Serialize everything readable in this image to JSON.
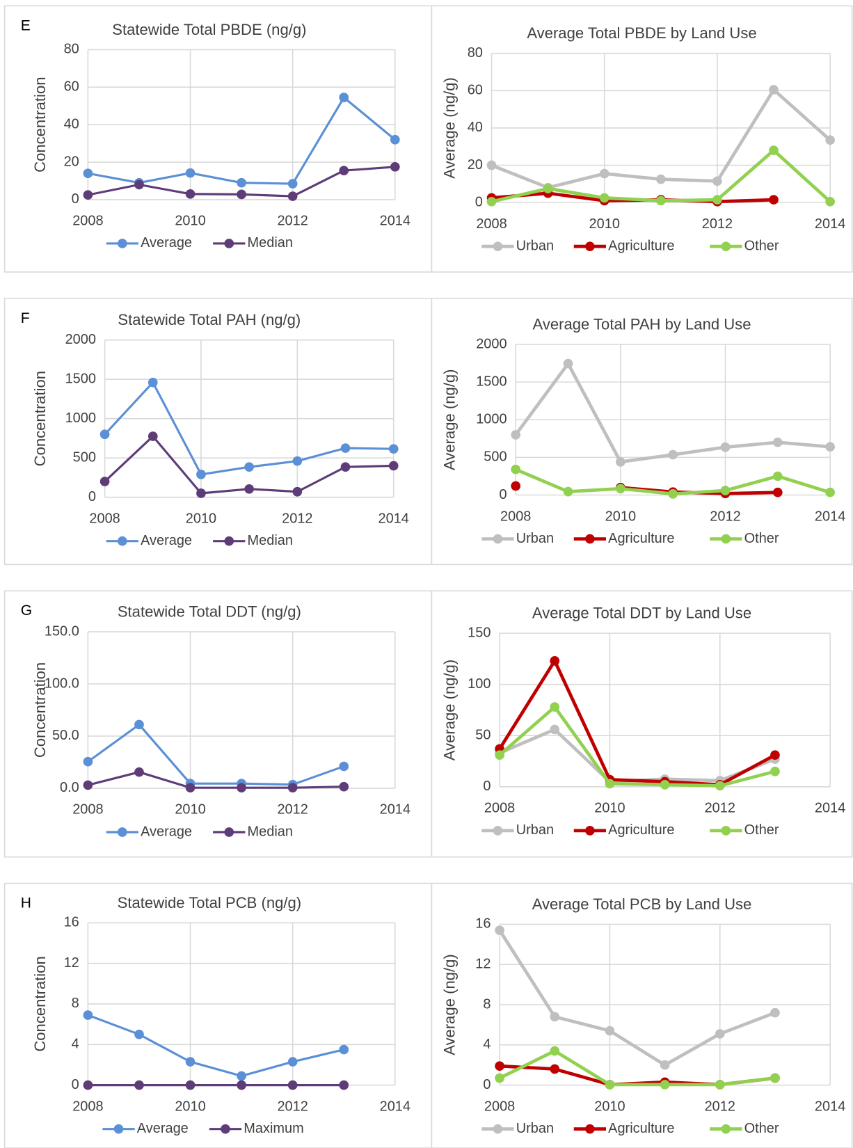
{
  "chart_data": [
    {
      "type": "line",
      "panel": "E",
      "title": "Statewide Total PBDE (ng/g)",
      "ylabel": "Concentration",
      "x": [
        2008,
        2009,
        2010,
        2011,
        2012,
        2013,
        2014
      ],
      "xlim": [
        2008,
        2014
      ],
      "xticks": [
        2008,
        2010,
        2012,
        2014
      ],
      "ylim": [
        0,
        80
      ],
      "yticks": [
        0,
        20,
        40,
        60,
        80
      ],
      "grid": true,
      "series": [
        {
          "name": "Average",
          "color": "#5b8fd6",
          "values": [
            14,
            9,
            14.2,
            9,
            8.5,
            54.5,
            32
          ]
        },
        {
          "name": "Median",
          "color": "#5e3c78",
          "values": [
            2.5,
            8,
            3,
            2.8,
            1.8,
            15.5,
            17.5
          ]
        }
      ]
    },
    {
      "type": "line",
      "title": "Average Total PBDE by Land Use",
      "ylabel": "Average (ng/g)",
      "x": [
        2008,
        2009,
        2010,
        2011,
        2012,
        2013,
        2014
      ],
      "xlim": [
        2008,
        2014
      ],
      "xticks": [
        2008,
        2010,
        2012,
        2014
      ],
      "ylim": [
        0,
        80
      ],
      "yticks": [
        0,
        20,
        40,
        60,
        80
      ],
      "grid": true,
      "series": [
        {
          "name": "Urban",
          "color": "#bfbfbf",
          "values": [
            20,
            8,
            15.5,
            12.5,
            11.5,
            60.5,
            33.5
          ]
        },
        {
          "name": "Agriculture",
          "color": "#c00000",
          "values": [
            2.5,
            5,
            1,
            1.5,
            0.5,
            1.5,
            null
          ]
        },
        {
          "name": "Other",
          "color": "#92d050",
          "values": [
            0.5,
            7.5,
            2.5,
            1,
            1.5,
            28,
            0.5
          ]
        }
      ]
    },
    {
      "type": "line",
      "panel": "F",
      "title": "Statewide Total PAH (ng/g)",
      "ylabel": "Concentration",
      "x": [
        2008,
        2009,
        2010,
        2011,
        2012,
        2013,
        2014
      ],
      "xlim": [
        2008,
        2014
      ],
      "xticks": [
        2008,
        2010,
        2012,
        2014
      ],
      "ylim": [
        0,
        2000
      ],
      "yticks": [
        0,
        500,
        1000,
        1500,
        2000
      ],
      "grid": true,
      "series": [
        {
          "name": "Average",
          "color": "#5b8fd6",
          "values": [
            800,
            1460,
            290,
            385,
            460,
            625,
            615
          ]
        },
        {
          "name": "Median",
          "color": "#5e3c78",
          "values": [
            200,
            775,
            50,
            105,
            70,
            385,
            400
          ]
        }
      ]
    },
    {
      "type": "line",
      "title": "Average Total PAH by Land Use",
      "ylabel": "Average (ng/g)",
      "x": [
        2008,
        2009,
        2010,
        2011,
        2012,
        2013,
        2014
      ],
      "xlim": [
        2008,
        2014
      ],
      "xticks": [
        2008,
        2010,
        2012,
        2014
      ],
      "ylim": [
        0,
        2000
      ],
      "yticks": [
        0,
        500,
        1000,
        1500,
        2000
      ],
      "grid": true,
      "series": [
        {
          "name": "Urban",
          "color": "#bfbfbf",
          "values": [
            800,
            1745,
            440,
            535,
            635,
            700,
            640
          ]
        },
        {
          "name": "Agriculture",
          "color": "#c00000",
          "values": [
            120,
            null,
            100,
            40,
            20,
            35,
            null
          ]
        },
        {
          "name": "Other",
          "color": "#92d050",
          "values": [
            340,
            45,
            85,
            15,
            60,
            250,
            35
          ]
        }
      ]
    },
    {
      "type": "line",
      "panel": "G",
      "title": "Statewide Total DDT (ng/g)",
      "ylabel": "Concentration",
      "x": [
        2008,
        2009,
        2010,
        2011,
        2012,
        2013,
        2014
      ],
      "xlim": [
        2008,
        2014
      ],
      "xticks": [
        2008,
        2010,
        2012,
        2014
      ],
      "ylim": [
        0,
        150
      ],
      "yticks": [
        {
          "value": 0,
          "label": "0.0"
        },
        {
          "value": 50,
          "label": "50.0"
        },
        {
          "value": 100,
          "label": "100.0"
        },
        {
          "value": 150,
          "label": "150.0"
        }
      ],
      "grid": true,
      "series": [
        {
          "name": "Average",
          "color": "#5b8fd6",
          "values": [
            25.5,
            61,
            4.5,
            4.5,
            3.5,
            21,
            null
          ]
        },
        {
          "name": "Median",
          "color": "#5e3c78",
          "values": [
            3,
            15.5,
            0.5,
            0.5,
            0.5,
            1.5,
            null
          ]
        }
      ]
    },
    {
      "type": "line",
      "title": "Average Total DDT by Land Use",
      "ylabel": "Average (ng/g)",
      "x": [
        2008,
        2009,
        2010,
        2011,
        2012,
        2013,
        2014
      ],
      "xlim": [
        2008,
        2014
      ],
      "xticks": [
        2008,
        2010,
        2012,
        2014
      ],
      "ylim": [
        0,
        150
      ],
      "yticks": [
        0,
        50,
        100,
        150
      ],
      "grid": true,
      "series": [
        {
          "name": "Urban",
          "color": "#bfbfbf",
          "values": [
            33,
            56,
            5,
            7.5,
            6,
            27,
            null
          ]
        },
        {
          "name": "Agriculture",
          "color": "#c00000",
          "values": [
            37,
            123,
            7,
            5,
            2,
            31,
            null
          ]
        },
        {
          "name": "Other",
          "color": "#92d050",
          "values": [
            31,
            78,
            3,
            2,
            1,
            15,
            null
          ]
        }
      ]
    },
    {
      "type": "line",
      "panel": "H",
      "title": "Statewide Total PCB (ng/g)",
      "ylabel": "Concentration",
      "x": [
        2008,
        2009,
        2010,
        2011,
        2012,
        2013,
        2014
      ],
      "xlim": [
        2008,
        2014
      ],
      "xticks": [
        2008,
        2010,
        2012,
        2014
      ],
      "ylim": [
        0,
        16
      ],
      "yticks": [
        0,
        4,
        8,
        12,
        16
      ],
      "grid": true,
      "series": [
        {
          "name": "Average",
          "color": "#5b8fd6",
          "values": [
            6.9,
            5,
            2.3,
            0.9,
            2.3,
            3.5,
            null
          ]
        },
        {
          "name": "Maximum",
          "color": "#5e3c78",
          "values": [
            0,
            0,
            0,
            0,
            0,
            0,
            null
          ]
        }
      ]
    },
    {
      "type": "line",
      "title": "Average Total PCB by Land Use",
      "ylabel": "Average (ng/g)",
      "x": [
        2008,
        2009,
        2010,
        2011,
        2012,
        2013,
        2014
      ],
      "xlim": [
        2008,
        2014
      ],
      "xticks": [
        2008,
        2010,
        2012,
        2014
      ],
      "ylim": [
        0,
        16
      ],
      "yticks": [
        0,
        4,
        8,
        12,
        16
      ],
      "grid": true,
      "series": [
        {
          "name": "Urban",
          "color": "#bfbfbf",
          "values": [
            15.4,
            6.8,
            5.4,
            2,
            5.1,
            7.2,
            null
          ]
        },
        {
          "name": "Agriculture",
          "color": "#c00000",
          "values": [
            1.9,
            1.6,
            0.05,
            0.3,
            0.05,
            0.7,
            null
          ]
        },
        {
          "name": "Other",
          "color": "#92d050",
          "values": [
            0.7,
            3.4,
            0.05,
            0.05,
            0.05,
            0.7,
            null
          ]
        }
      ]
    }
  ]
}
